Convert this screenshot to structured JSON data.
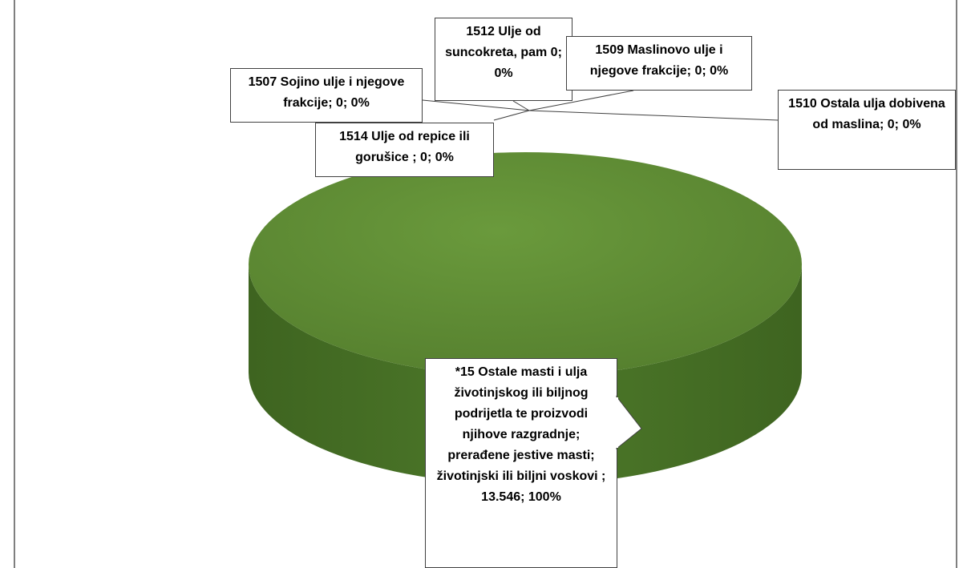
{
  "chart_data": {
    "type": "pie",
    "values": [
      0,
      0,
      0,
      0,
      0,
      13546
    ],
    "value_labels": [
      "1507 Sojino ulje i njegove frakcije; 0; 0%",
      "1509 Maslinovo ulje i njegove frakcije; 0; 0%",
      "1510 Ostala ulja dobivena od maslina; 0; 0%",
      "1512 Ulje od suncokreta, pam 0; 0%",
      "1514 Ulje od repice ili gorušice ; 0; 0%",
      "*15 Ostale masti i ulja životinjskog ili biljnog podrijetla te proizvodi njihove razgradnje; prerađene jestive masti; životinjski ili biljni voskovi ; 13.546; 100%"
    ],
    "colors": [
      "#4f81bd",
      "#c0504d",
      "#9bbb59",
      "#8064a2",
      "#4bacc6",
      "#5e8c35"
    ]
  }
}
